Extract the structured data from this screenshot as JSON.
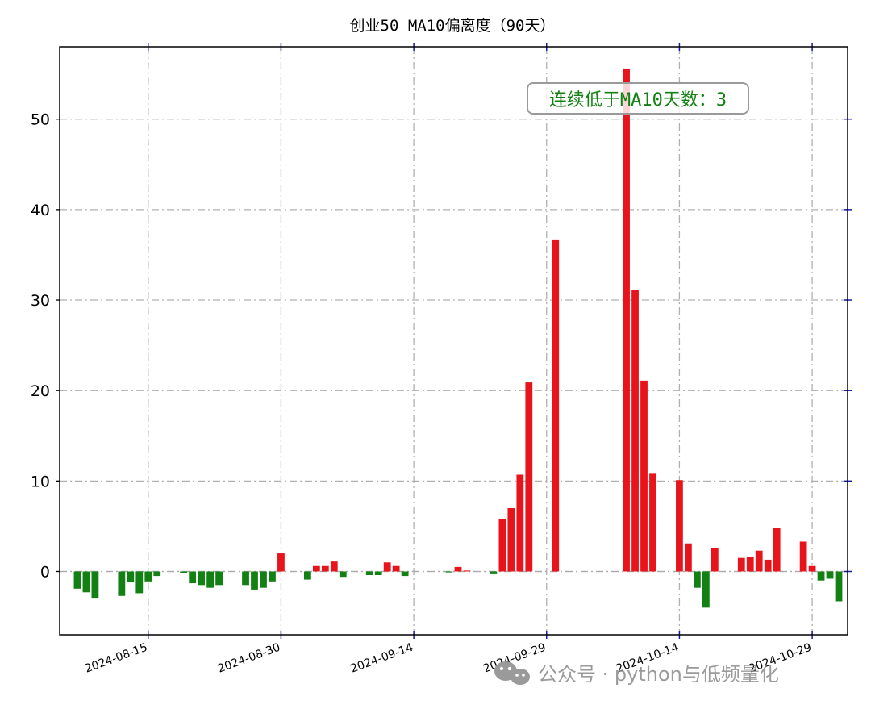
{
  "chart_data": {
    "type": "bar",
    "title": "创业50 MA10偏离度（90天）",
    "xlabel": "",
    "ylabel": "",
    "ylim": [
      -7,
      58
    ],
    "yticks": [
      0,
      10,
      20,
      30,
      40,
      50
    ],
    "x_range": [
      "2024-08-05",
      "2024-11-02"
    ],
    "xticks": [
      "2024-08-15",
      "2024-08-30",
      "2024-09-14",
      "2024-09-29",
      "2024-10-14",
      "2024-10-29"
    ],
    "grid": true,
    "positive_color": "#e8141c",
    "negative_color": "#128012",
    "x": [
      "2024-08-07",
      "2024-08-08",
      "2024-08-09",
      "2024-08-12",
      "2024-08-13",
      "2024-08-14",
      "2024-08-15",
      "2024-08-16",
      "2024-08-19",
      "2024-08-20",
      "2024-08-21",
      "2024-08-22",
      "2024-08-23",
      "2024-08-26",
      "2024-08-27",
      "2024-08-28",
      "2024-08-29",
      "2024-08-30",
      "2024-09-02",
      "2024-09-03",
      "2024-09-04",
      "2024-09-05",
      "2024-09-06",
      "2024-09-09",
      "2024-09-10",
      "2024-09-11",
      "2024-09-12",
      "2024-09-13",
      "2024-09-18",
      "2024-09-19",
      "2024-09-20",
      "2024-09-23",
      "2024-09-24",
      "2024-09-25",
      "2024-09-26",
      "2024-09-27",
      "2024-09-30",
      "2024-10-08",
      "2024-10-09",
      "2024-10-10",
      "2024-10-11",
      "2024-10-14",
      "2024-10-15",
      "2024-10-16",
      "2024-10-17",
      "2024-10-18",
      "2024-10-21",
      "2024-10-22",
      "2024-10-23",
      "2024-10-24",
      "2024-10-25",
      "2024-10-28",
      "2024-10-29",
      "2024-10-30",
      "2024-10-31",
      "2024-11-01"
    ],
    "values": [
      -1.9,
      -2.3,
      -3.0,
      -2.7,
      -1.2,
      -2.4,
      -1.1,
      -0.5,
      -0.2,
      -1.3,
      -1.5,
      -1.8,
      -1.5,
      -1.5,
      -2.0,
      -1.8,
      -1.1,
      2.0,
      -0.9,
      0.6,
      0.6,
      1.1,
      -0.6,
      -0.4,
      -0.4,
      1.0,
      0.6,
      -0.5,
      -0.1,
      0.5,
      0.1,
      -0.3,
      5.8,
      7.0,
      10.7,
      20.9,
      36.7,
      55.6,
      31.1,
      21.1,
      10.8,
      10.1,
      3.1,
      -1.8,
      -4.0,
      2.6,
      1.5,
      1.6,
      2.3,
      1.3,
      4.8,
      3.3,
      0.6,
      -1.0,
      -0.8,
      -3.3
    ],
    "annotation": {
      "text": "连续低于MA10天数：3",
      "color": "#128012",
      "position": "top-right"
    }
  },
  "watermark": {
    "text": "公众号 · python与低频量化",
    "icon": "wechat-icon"
  }
}
